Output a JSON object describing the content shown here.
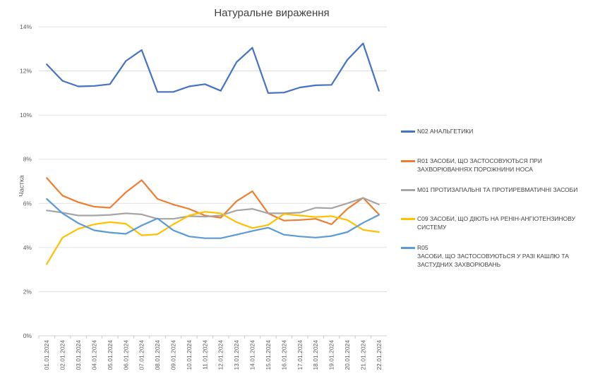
{
  "chart_data": {
    "type": "line",
    "title": "Натуральне вираження",
    "ylabel": "Частка",
    "xlabel": "",
    "ylim": [
      0,
      14
    ],
    "yticks": [
      "0%",
      "2%",
      "4%",
      "6%",
      "8%",
      "10%",
      "12%",
      "14%"
    ],
    "grid": true,
    "legend_position": "right",
    "categories": [
      "01.01.2024",
      "02.01.2024",
      "03.01.2024",
      "04.01.2024",
      "05.01.2024",
      "06.01.2024",
      "07.01.2024",
      "08.01.2024",
      "09.01.2024",
      "10.01.2024",
      "11.01.2024",
      "12.01.2024",
      "13.01.2024",
      "14.01.2024",
      "15.01.2024",
      "16.01.2024",
      "17.01.2024",
      "18.01.2024",
      "19.01.2024",
      "20.01.2024",
      "21.01.2024",
      "22.01.2024"
    ],
    "series": [
      {
        "name": "N02 АНАЛЬГЕТИКИ",
        "color": "#4472C4",
        "values": [
          12.3,
          11.55,
          11.3,
          11.32,
          11.4,
          12.45,
          12.95,
          11.05,
          11.05,
          11.3,
          11.4,
          11.1,
          12.4,
          13.05,
          11.0,
          11.02,
          11.25,
          11.35,
          11.37,
          12.5,
          13.25,
          11.1
        ]
      },
      {
        "name": "R01 ЗАСОБИ, ЩО ЗАСТОСОВУЮТЬСЯ ПРИ ЗАХВОРЮВАННЯХ ПОРОЖНИНИ НОСА",
        "color": "#ED7D31",
        "values": [
          7.15,
          6.35,
          6.05,
          5.85,
          5.8,
          6.5,
          7.05,
          6.2,
          5.95,
          5.75,
          5.45,
          5.35,
          6.1,
          6.55,
          5.55,
          5.22,
          5.25,
          5.3,
          5.05,
          5.75,
          6.25,
          5.5
        ]
      },
      {
        "name": "M01 ПРОТИЗАПАЛЬНІ ТА ПРОТИРЕВМАТИЧНІ ЗАСОБИ",
        "color": "#A5A5A5",
        "values": [
          5.68,
          5.58,
          5.45,
          5.45,
          5.48,
          5.55,
          5.5,
          5.3,
          5.3,
          5.42,
          5.4,
          5.45,
          5.68,
          5.75,
          5.55,
          5.55,
          5.58,
          5.8,
          5.78,
          6.0,
          6.25,
          5.95
        ]
      },
      {
        "name": "C09 ЗАСОБИ, ЩО ДІЮТЬ НА РЕНІН-АНГІОТЕНЗИНОВУ СИСТЕМУ",
        "color": "#FFC000",
        "values": [
          3.25,
          4.45,
          4.85,
          5.05,
          5.15,
          5.08,
          4.55,
          4.6,
          5.05,
          5.45,
          5.62,
          5.55,
          5.15,
          4.88,
          5.02,
          5.52,
          5.45,
          5.38,
          5.42,
          5.25,
          4.8,
          4.7
        ]
      },
      {
        "name": "R05\nЗАСОБИ, ЩО ЗАСТОСОВУЮТЬСЯ У РАЗІ КАШЛЮ ТА ЗАСТУДНИХ ЗАХВОРЮВАНЬ",
        "color": "#5B9BD5",
        "values": [
          6.2,
          5.55,
          5.1,
          4.78,
          4.68,
          4.62,
          5.0,
          5.32,
          4.78,
          4.5,
          4.42,
          4.42,
          4.58,
          4.75,
          4.9,
          4.58,
          4.5,
          4.45,
          4.52,
          4.7,
          5.12,
          5.48
        ]
      }
    ]
  }
}
